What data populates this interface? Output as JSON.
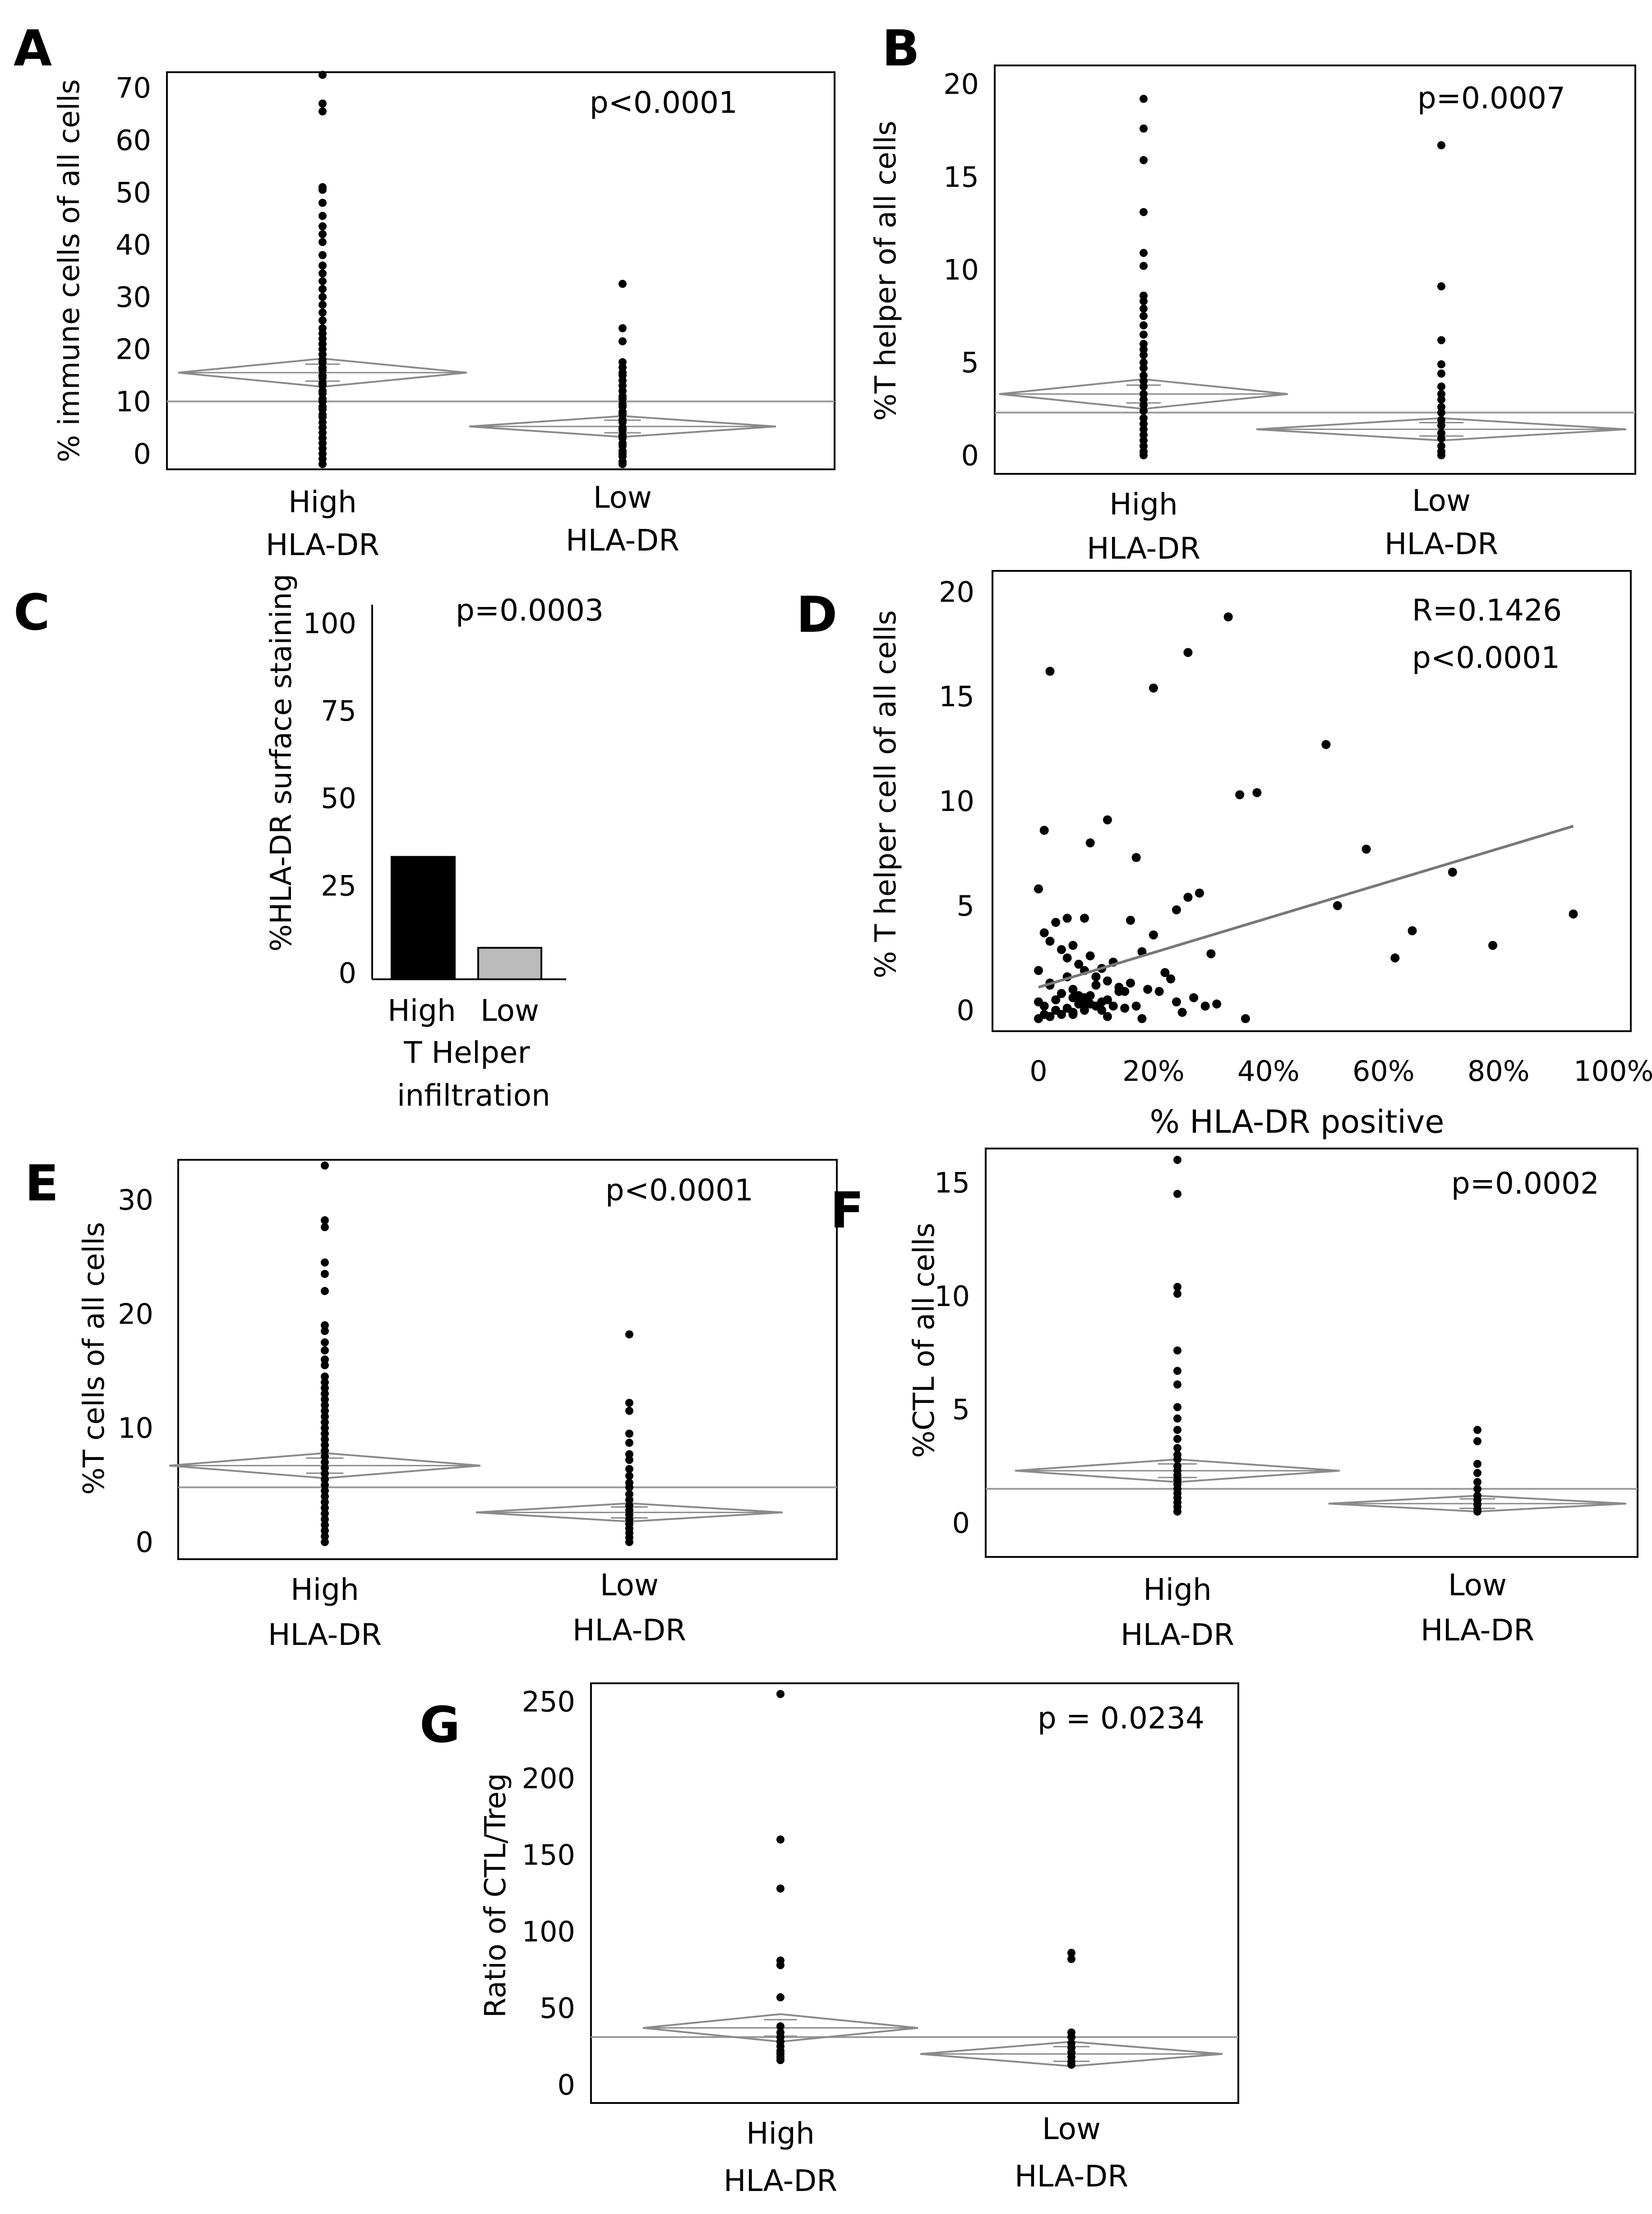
{
  "colors": {
    "point": "#000000",
    "diamond": "#8a8a8a",
    "grand_mean": "#9a9a9a",
    "fit_line": "#777777",
    "bar_high": "#000000",
    "bar_low": "#bbbbbb"
  },
  "chart_data": [
    {
      "panel": "A",
      "type": "scatter",
      "subtype": "one-way-means-diamonds",
      "ylabel": "% immune cells of all cells",
      "annotation": "p<0.0001",
      "yticks": [
        0,
        10,
        20,
        30,
        40,
        50,
        60,
        70
      ],
      "ylim": [
        -3,
        73
      ],
      "groups": [
        {
          "label": [
            "High",
            "HLA-DR"
          ],
          "mean": 15.5,
          "ci": [
            12.8,
            18.2
          ],
          "values": [
            72.5,
            67,
            65.5,
            51,
            50.5,
            48,
            45.5,
            43.5,
            42,
            40.5,
            38,
            36,
            34.5,
            33,
            31.5,
            30,
            28.5,
            27,
            25.5,
            24,
            23,
            22,
            21,
            20,
            19,
            18,
            17.5,
            16.5,
            16,
            15,
            14.5,
            13.5,
            13,
            12,
            11.5,
            10.5,
            10,
            9,
            8.5,
            7.5,
            7,
            6,
            5,
            4,
            3,
            2,
            1,
            0,
            -1,
            -2
          ]
        },
        {
          "label": [
            "Low",
            "HLA-DR"
          ],
          "mean": 5.2,
          "ci": [
            3.2,
            7.2
          ],
          "values": [
            32.5,
            24,
            21.5,
            17.5,
            16.5,
            15.5,
            15,
            14,
            13,
            12,
            11,
            10.5,
            9.5,
            9,
            8,
            7.5,
            6.5,
            6,
            5,
            4.5,
            3.5,
            3,
            2,
            1.5,
            0.5,
            0,
            -0.5,
            -1.5,
            -2
          ]
        }
      ],
      "grand_mean": 10
    },
    {
      "panel": "B",
      "type": "scatter",
      "subtype": "one-way-means-diamonds",
      "ylabel": "%T helper of all cells",
      "annotation": "p=0.0007",
      "yticks": [
        0,
        5,
        10,
        15,
        20
      ],
      "ylim": [
        -1,
        21
      ],
      "groups": [
        {
          "label": [
            "High",
            "HLA-DR"
          ],
          "mean": 3.3,
          "ci": [
            2.5,
            4.1
          ],
          "values": [
            19.2,
            17.6,
            15.9,
            13.1,
            10.9,
            10.2,
            8.6,
            8.3,
            7.9,
            7.5,
            7.0,
            6.5,
            6.0,
            5.7,
            5.4,
            5.0,
            4.7,
            4.3,
            4.0,
            3.7,
            3.3,
            3.0,
            2.7,
            2.4,
            2.0,
            1.7,
            1.4,
            1.1,
            0.8,
            0.5,
            0.2,
            0
          ]
        },
        {
          "label": [
            "Low",
            "HLA-DR"
          ],
          "mean": 1.4,
          "ci": [
            0.8,
            2.0
          ],
          "values": [
            16.7,
            9.1,
            6.2,
            4.9,
            4.4,
            3.7,
            3.3,
            3.0,
            2.6,
            2.3,
            1.9,
            1.6,
            1.2,
            0.9,
            0.5,
            0.2,
            0
          ]
        }
      ],
      "grand_mean": 2.3
    },
    {
      "panel": "C",
      "type": "bar",
      "ylabel": "%HLA-DR surface staining",
      "annotation": "p=0.0003",
      "categories": [
        "High",
        "Low"
      ],
      "values": [
        35,
        9
      ],
      "yticks": [
        0,
        25,
        50,
        75,
        100
      ],
      "ylim": [
        -2,
        107
      ],
      "xlabel": [
        "T Helper",
        "infiltration"
      ]
    },
    {
      "panel": "D",
      "type": "scatter",
      "ylabel": "% T helper cell of all cells",
      "xlabel": "% HLA-DR  positive",
      "annotation": [
        "R=0.1426",
        "p<0.0001"
      ],
      "xticks": [
        0,
        20,
        40,
        60,
        80,
        100
      ],
      "xticklabels": [
        "0",
        "20%",
        "40%",
        "60%",
        "80%",
        "100%"
      ],
      "yticks": [
        0,
        5,
        10,
        15,
        20
      ],
      "xlim": [
        -8,
        103
      ],
      "ylim": [
        -1,
        21
      ],
      "fit_line": {
        "x": [
          0,
          93
        ],
        "y": [
          1.1,
          8.8
        ]
      },
      "x": [
        1,
        2,
        12,
        20,
        26,
        33,
        5,
        35,
        38,
        50,
        57,
        65,
        72,
        79,
        93,
        52,
        62,
        8,
        9,
        17,
        0,
        1,
        2,
        3,
        4,
        5,
        6,
        7,
        8,
        9,
        10,
        11,
        12,
        13,
        14,
        15,
        16,
        18,
        20,
        22,
        24,
        26,
        28,
        30,
        2,
        4,
        6,
        8,
        10,
        0,
        1,
        3,
        5,
        7,
        9,
        11,
        14,
        17,
        23,
        27,
        31,
        6,
        12,
        18,
        25,
        36,
        0,
        2,
        4,
        6,
        8,
        10,
        12,
        15,
        19,
        21,
        24,
        29,
        1,
        3,
        5,
        7,
        9,
        11,
        13,
        16,
        0,
        2,
        4,
        6,
        8
      ],
      "y": [
        8.6,
        16.2,
        9.1,
        15.4,
        17.1,
        18.8,
        4.4,
        10.3,
        10.4,
        12.7,
        7.7,
        3.8,
        6.6,
        3.1,
        4.6,
        5.0,
        2.5,
        4.4,
        8.0,
        7.3,
        5.8,
        3.7,
        3.3,
        4.2,
        2.9,
        2.5,
        3.1,
        2.2,
        1.9,
        2.6,
        1.6,
        2.0,
        1.4,
        2.3,
        1.1,
        0.9,
        4.3,
        2.8,
        3.6,
        1.8,
        4.8,
        5.4,
        5.6,
        2.7,
        1.3,
        0.8,
        1.0,
        0.6,
        1.2,
        0.4,
        0.2,
        0.5,
        0.1,
        0.3,
        0.7,
        0.4,
        0.9,
        0.2,
        1.5,
        0.6,
        0.3,
        -0.2,
        -0.3,
        -0.4,
        -0.1,
        -0.4,
        1.9,
        1.2,
        0.8,
        0.6,
        0.3,
        0.2,
        0.5,
        0.1,
        1.0,
        0.9,
        0.4,
        0.2,
        -0.2,
        0.0,
        1.6,
        0.7,
        0.3,
        0.0,
        0.2,
        1.3,
        -0.4,
        -0.3,
        -0.2,
        -0.1,
        0.0
      ]
    },
    {
      "panel": "E",
      "type": "scatter",
      "subtype": "one-way-means-diamonds",
      "ylabel": "%T cells of all cells",
      "annotation": "p<0.0001",
      "yticks": [
        0,
        10,
        20,
        30
      ],
      "ylim": [
        -1.5,
        33.5
      ],
      "groups": [
        {
          "label": [
            "High",
            "HLA-DR"
          ],
          "mean": 6.7,
          "ci": [
            5.6,
            7.8
          ],
          "values": [
            33,
            28.2,
            27.6,
            24.5,
            23.5,
            22,
            19,
            18.5,
            17.5,
            16.8,
            16,
            15.5,
            14.5,
            14,
            13.5,
            13,
            12.5,
            12,
            11.5,
            11,
            10.5,
            10,
            9.5,
            9,
            8.5,
            8,
            7.5,
            7,
            6.5,
            6,
            5.5,
            5,
            4.5,
            4,
            3.5,
            3,
            2.5,
            2,
            1.5,
            1,
            0.5,
            0
          ]
        },
        {
          "label": [
            "Low",
            "HLA-DR"
          ],
          "mean": 2.6,
          "ci": [
            1.8,
            3.4
          ],
          "values": [
            18.2,
            12.2,
            11.5,
            9.5,
            8.7,
            7.7,
            7.2,
            6.4,
            5.8,
            5.2,
            4.8,
            4.2,
            3.7,
            3.2,
            2.8,
            2.4,
            2,
            1.6,
            1.2,
            0.8,
            0.4,
            0
          ]
        }
      ],
      "grand_mean": 4.8
    },
    {
      "panel": "F",
      "type": "scatter",
      "subtype": "one-way-means-diamonds",
      "ylabel": "%CTL of all cells",
      "annotation": "p=0.0002",
      "yticks": [
        0,
        5,
        10,
        15
      ],
      "ylim": [
        -1.5,
        16.5
      ],
      "groups": [
        {
          "label": [
            "High",
            "HLA-DR"
          ],
          "mean": 2.3,
          "ci": [
            1.8,
            2.8
          ],
          "values": [
            16,
            14.5,
            10.4,
            10.1,
            7.6,
            6.7,
            6.1,
            5.1,
            4.6,
            4.1,
            3.7,
            3.3,
            3.0,
            2.8,
            2.5,
            2.3,
            2.1,
            1.9,
            1.7,
            1.5,
            1.3,
            1.1,
            0.9,
            0.7,
            0.5
          ]
        },
        {
          "label": [
            "Low",
            "HLA-DR"
          ],
          "mean": 0.85,
          "ci": [
            0.5,
            1.2
          ],
          "values": [
            4.1,
            3.6,
            2.6,
            2.2,
            1.8,
            1.5,
            1.2,
            1.0,
            0.8,
            0.6,
            0.5
          ]
        }
      ],
      "grand_mean": 1.5
    },
    {
      "panel": "G",
      "type": "scatter",
      "subtype": "one-way-means-diamonds",
      "ylabel": "Ratio of CTL/Treg",
      "annotation": "p = 0.0234",
      "yticks": [
        0,
        50,
        100,
        150,
        200,
        250
      ],
      "ylim": [
        -12,
        262
      ],
      "groups": [
        {
          "label": [
            "High",
            "HLA-DR"
          ],
          "mean": 37,
          "ci": [
            28,
            46
          ],
          "values": [
            255,
            160,
            128,
            81,
            78,
            57,
            38,
            34,
            31,
            28,
            25,
            22,
            20,
            18,
            16
          ]
        },
        {
          "label": [
            "Low",
            "HLA-DR"
          ],
          "mean": 20,
          "ci": [
            12,
            28
          ],
          "values": [
            86,
            82,
            34,
            31,
            27,
            24,
            21,
            18,
            15,
            13
          ]
        }
      ],
      "grand_mean": 31
    }
  ]
}
